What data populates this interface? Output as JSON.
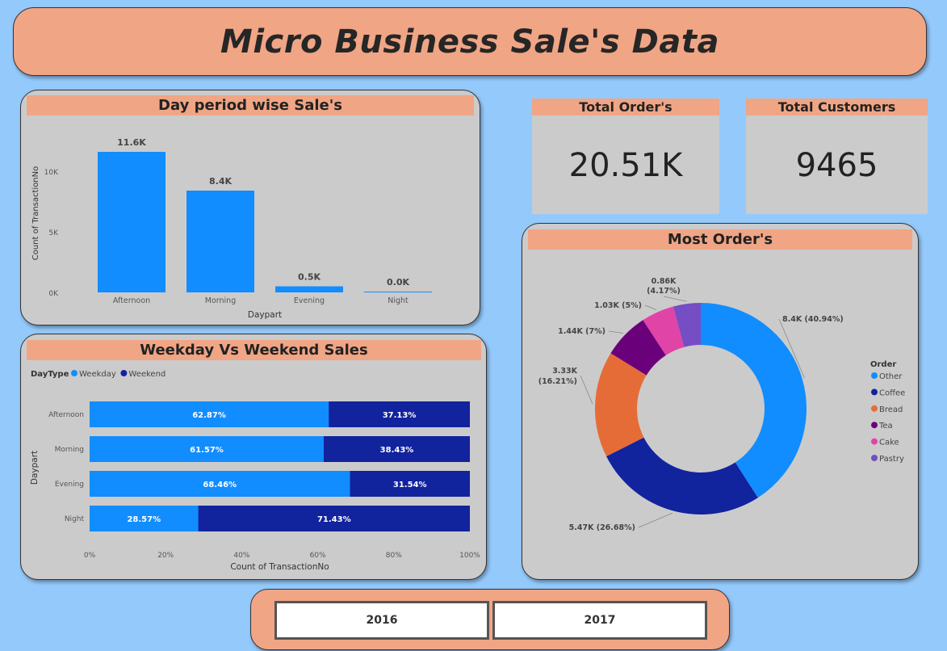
{
  "title": "Micro Business Sale's Data",
  "daypart_chart": {
    "heading": "Day period wise Sale's",
    "chart_data": {
      "type": "bar",
      "categories": [
        "Afternoon",
        "Morning",
        "Evening",
        "Night"
      ],
      "values": [
        11600,
        8400,
        500,
        20
      ],
      "data_labels": [
        "11.6K",
        "8.4K",
        "0.5K",
        "0.0K"
      ],
      "xlabel": "Daypart",
      "ylabel": "Count of TransactionNo",
      "ylim": [
        0,
        12000
      ],
      "yticks": [
        0,
        5000,
        10000
      ],
      "ytick_labels": [
        "0K",
        "5K",
        "10K"
      ],
      "color": "#118dff"
    }
  },
  "kpis": {
    "orders": {
      "label": "Total Order's",
      "value": "20.51K"
    },
    "customers": {
      "label": "Total Customers",
      "value": "9465"
    }
  },
  "weekday_chart": {
    "heading": "Weekday Vs Weekend Sales",
    "chart_data": {
      "type": "bar",
      "orientation": "horizontal-stacked-100",
      "categories": [
        "Afternoon",
        "Morning",
        "Evening",
        "Night"
      ],
      "legend_title": "DayType",
      "series": [
        {
          "name": "Weekday",
          "color": "#118dff",
          "values": [
            62.87,
            61.57,
            68.46,
            28.57
          ],
          "labels": [
            "62.87%",
            "61.57%",
            "68.46%",
            "28.57%"
          ]
        },
        {
          "name": "Weekend",
          "color": "#12239e",
          "values": [
            37.13,
            38.43,
            31.54,
            71.43
          ],
          "labels": [
            "37.13%",
            "38.43%",
            "31.54%",
            "71.43%"
          ]
        }
      ],
      "xlabel": "Count of TransactionNo",
      "ylabel": "Daypart",
      "xticks": [
        "0%",
        "20%",
        "40%",
        "60%",
        "80%",
        "100%"
      ]
    }
  },
  "orders_chart": {
    "heading": "Most Order's",
    "chart_data": {
      "type": "pie",
      "variant": "donut",
      "legend_title": "Order",
      "slices": [
        {
          "name": "Other",
          "value": 8400,
          "percent": 40.94,
          "label": "8.4K (40.94%)",
          "color": "#118dff"
        },
        {
          "name": "Coffee",
          "value": 5470,
          "percent": 26.68,
          "label": "5.47K (26.68%)",
          "color": "#12239e"
        },
        {
          "name": "Bread",
          "value": 3330,
          "percent": 16.21,
          "label": "3.33K (16.21%)",
          "color": "#e66c37"
        },
        {
          "name": "Tea",
          "value": 1440,
          "percent": 7,
          "label": "1.44K (7%)",
          "color": "#6b007b"
        },
        {
          "name": "Cake",
          "value": 1030,
          "percent": 5,
          "label": "1.03K (5%)",
          "color": "#e044a7"
        },
        {
          "name": "Pastry",
          "value": 860,
          "percent": 4.17,
          "label": "0.86K (4.17%)",
          "color": "#744ec2"
        }
      ]
    }
  },
  "year_slicer": {
    "options": [
      "2016",
      "2017"
    ]
  }
}
